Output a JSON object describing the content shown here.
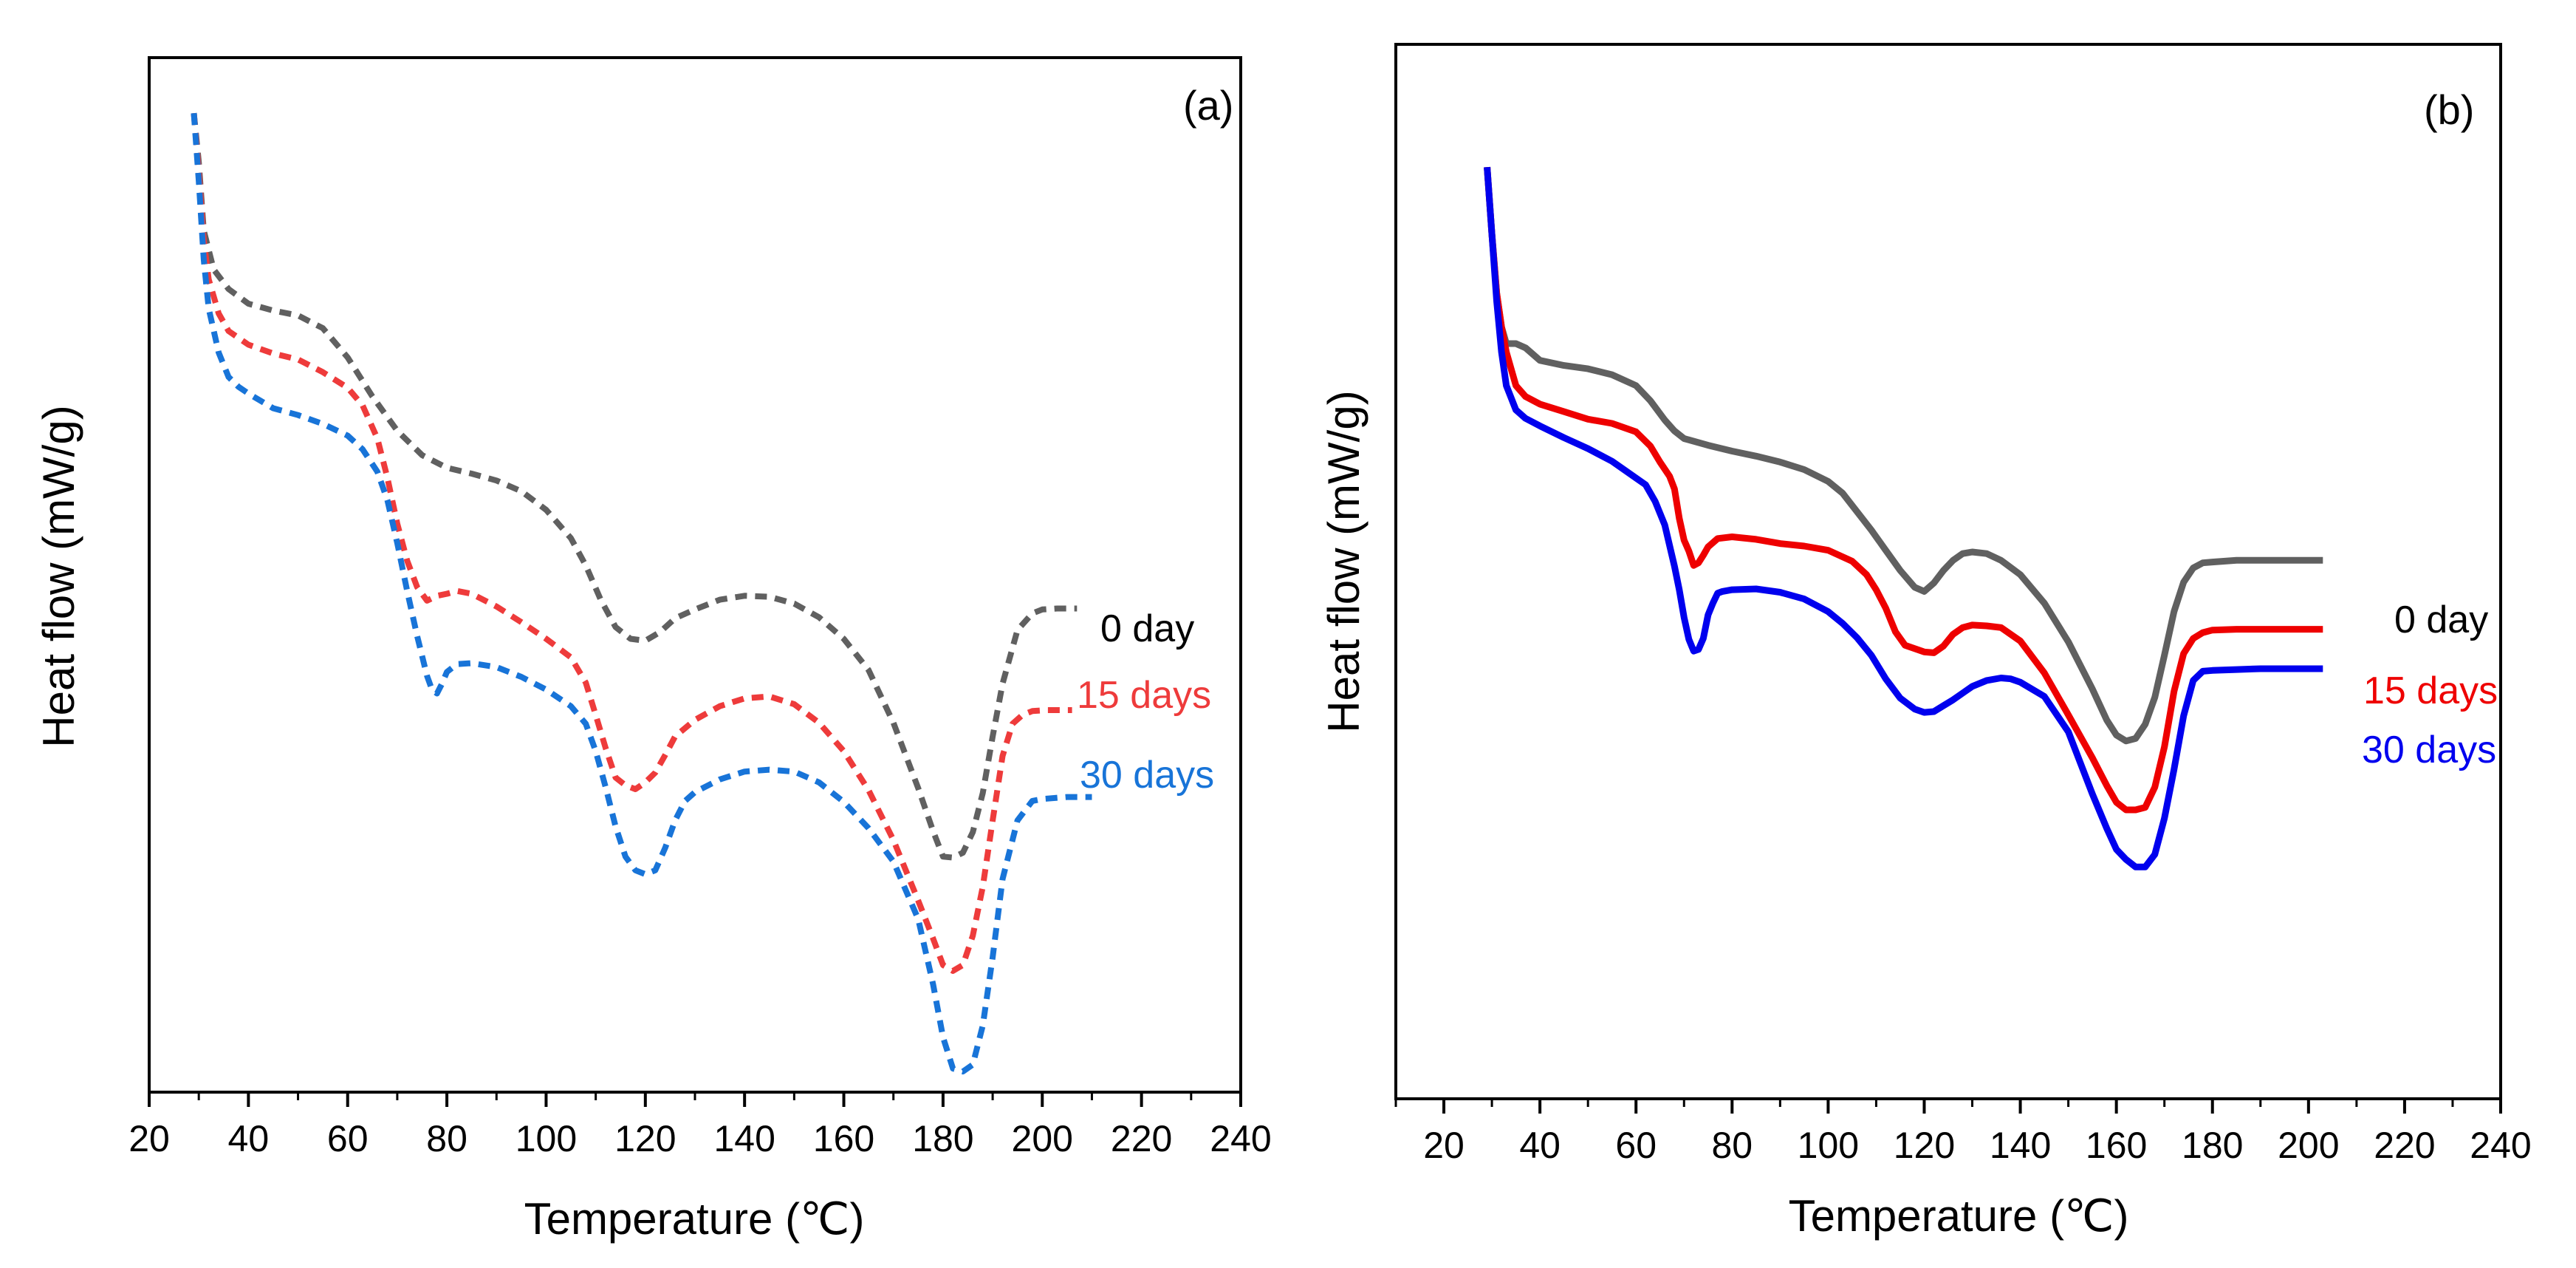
{
  "chart_data": [
    {
      "type": "line",
      "panel_label": "(a)",
      "xlabel": "Temperature (℃)",
      "ylabel": "Heat flow (mW/g)",
      "xlim": [
        20,
        240
      ],
      "ylim": [
        0,
        100
      ],
      "xticks": [
        "20",
        "40",
        "60",
        "80",
        "100",
        "120",
        "140",
        "160",
        "180",
        "200",
        "220",
        "240"
      ],
      "y_tick_labels": false,
      "line_style": "dashed",
      "series": [
        {
          "name": "0 day",
          "color": "#606060",
          "x": [
            29,
            30,
            31,
            33,
            36,
            40,
            45,
            50,
            55,
            60,
            65,
            70,
            75,
            80,
            85,
            90,
            95,
            100,
            105,
            108,
            111,
            114,
            117,
            120,
            123,
            126,
            130,
            135,
            140,
            145,
            150,
            155,
            160,
            165,
            170,
            175,
            178,
            180,
            182,
            184,
            186,
            188,
            190,
            192,
            195,
            198,
            200,
            203,
            207
          ],
          "y": [
            99,
            94,
            87,
            83,
            81,
            79.5,
            78.8,
            78.3,
            77,
            74,
            70,
            66.5,
            64,
            62.7,
            62.1,
            61.4,
            60.3,
            58.4,
            55.5,
            52.7,
            49.2,
            46.4,
            45.2,
            45.0,
            45.9,
            47.3,
            48.2,
            49.2,
            49.6,
            49.5,
            48.8,
            47.4,
            45.2,
            42.0,
            36.6,
            29.9,
            25.5,
            22.9,
            22.8,
            23.3,
            25.4,
            29.4,
            35.2,
            40.6,
            46.1,
            47.8,
            48.2,
            48.3,
            48.3
          ]
        },
        {
          "name": "15 days",
          "color": "#ee3b3b",
          "x": [
            29,
            30,
            31,
            32,
            34,
            36,
            40,
            45,
            50,
            55,
            60,
            63,
            66,
            68,
            70,
            72,
            74,
            76,
            78,
            80,
            82,
            85,
            90,
            95,
            100,
            105,
            108,
            110,
            112,
            114,
            116,
            118,
            120,
            122,
            124,
            126,
            130,
            135,
            140,
            145,
            150,
            155,
            160,
            165,
            170,
            175,
            178,
            180,
            182,
            184,
            186,
            188,
            190,
            192,
            194,
            196,
            198,
            201,
            206
          ],
          "y": [
            99,
            93,
            86,
            82,
            78.5,
            76.7,
            75.3,
            74.4,
            73.8,
            72.5,
            70.9,
            69.1,
            65.7,
            61.7,
            57.0,
            53.2,
            50.5,
            49.1,
            49.6,
            49.8,
            50.1,
            49.8,
            48.5,
            46.9,
            45.2,
            43.3,
            40.7,
            37.4,
            34.0,
            31.0,
            30.2,
            29.8,
            30.5,
            31.5,
            33.3,
            35.2,
            36.9,
            38.3,
            39.1,
            39.3,
            38.5,
            36.6,
            33.7,
            29.7,
            24.6,
            18.4,
            14.5,
            11.8,
            11.2,
            11.8,
            14.8,
            19.8,
            26.6,
            33.2,
            36.5,
            37.4,
            37.8,
            37.9,
            37.9
          ]
        },
        {
          "name": "30 days",
          "color": "#1874d8",
          "x": [
            29,
            30,
            31,
            32,
            34,
            36,
            38,
            40,
            45,
            50,
            55,
            60,
            63,
            66,
            68,
            70,
            72,
            74,
            76,
            77,
            78,
            79,
            80,
            82,
            85,
            90,
            95,
            100,
            105,
            108,
            110,
            112,
            114,
            116,
            118,
            120,
            122,
            124,
            126,
            128,
            130,
            135,
            140,
            145,
            150,
            155,
            160,
            165,
            170,
            175,
            178,
            180,
            182,
            184,
            186,
            188,
            190,
            192,
            195,
            198,
            200,
            205,
            210
          ],
          "y": [
            99,
            92,
            84,
            79,
            74.5,
            72.0,
            71.0,
            70.3,
            68.8,
            68.1,
            67.2,
            66.0,
            64.6,
            62.3,
            59.4,
            55.0,
            50.1,
            45.5,
            41.4,
            40.0,
            39.6,
            40.6,
            41.8,
            42.6,
            42.7,
            42.3,
            41.3,
            40.0,
            38.3,
            36.5,
            33.7,
            30.0,
            26.0,
            22.9,
            21.5,
            21.1,
            21.5,
            23.8,
            26.6,
            28.6,
            29.5,
            30.8,
            31.6,
            31.8,
            31.6,
            30.5,
            28.5,
            25.8,
            22.4,
            16.5,
            9.8,
            4.4,
            1.2,
            0.9,
            1.6,
            5.6,
            12.6,
            20.6,
            26.6,
            28.6,
            28.8,
            29.0,
            29.0
          ]
        }
      ]
    },
    {
      "type": "line",
      "panel_label": "(b)",
      "xlabel": "Temperature (℃)",
      "ylabel": "Heat flow (mW/g)",
      "xlim": [
        10,
        240
      ],
      "ylim": [
        0,
        100
      ],
      "xticks": [
        "20",
        "40",
        "60",
        "80",
        "100",
        "120",
        "140",
        "160",
        "180",
        "200",
        "220",
        "240"
      ],
      "y_tick_labels": false,
      "line_style": "solid",
      "series": [
        {
          "name": "0 day",
          "color": "#606060",
          "x": [
            29,
            30,
            31,
            32,
            33,
            35,
            37,
            40,
            45,
            50,
            55,
            60,
            63,
            66,
            68,
            70,
            75,
            80,
            85,
            90,
            95,
            100,
            103,
            106,
            109,
            112,
            115,
            118,
            120,
            122,
            124,
            126,
            128,
            130,
            133,
            136,
            140,
            145,
            150,
            155,
            158,
            160,
            162,
            164,
            166,
            168,
            170,
            172,
            174,
            176,
            178,
            180,
            185,
            190,
            195,
            200,
            203
          ],
          "y": [
            94,
            86,
            79,
            75,
            73,
            73,
            72.5,
            71,
            70.4,
            70.0,
            69.3,
            68.0,
            66.2,
            63.9,
            62.6,
            61.7,
            60.9,
            60.2,
            59.6,
            58.9,
            58.0,
            56.6,
            55.2,
            53.0,
            50.8,
            48.4,
            46.0,
            44.0,
            43.5,
            44.5,
            46.0,
            47.2,
            48.0,
            48.2,
            48.0,
            47.2,
            45.5,
            42.1,
            37.5,
            31.9,
            28.2,
            26.4,
            25.7,
            26.0,
            27.7,
            30.9,
            35.9,
            41.1,
            44.6,
            46.3,
            46.9,
            47.0,
            47.2,
            47.2,
            47.2,
            47.2,
            47.2
          ]
        },
        {
          "name": "15 days",
          "color": "#ee0000",
          "x": [
            29,
            30,
            31,
            32,
            33,
            35,
            37,
            40,
            45,
            50,
            55,
            60,
            63,
            65,
            67,
            68,
            69,
            70,
            71,
            72,
            73,
            74,
            75,
            77,
            80,
            85,
            90,
            95,
            100,
            105,
            108,
            110,
            112,
            114,
            116,
            118,
            120,
            122,
            124,
            126,
            128,
            130,
            133,
            136,
            140,
            145,
            150,
            155,
            158,
            160,
            162,
            164,
            166,
            168,
            170,
            172,
            174,
            176,
            178,
            180,
            185,
            190,
            195,
            200,
            203
          ],
          "y": [
            94,
            86,
            79,
            75,
            72,
            68,
            66.7,
            65.8,
            64.9,
            64.0,
            63.5,
            62.5,
            60.8,
            58.9,
            57.2,
            55.7,
            52.2,
            49.6,
            48.3,
            46.6,
            46.9,
            47.8,
            48.8,
            49.8,
            50.0,
            49.7,
            49.2,
            48.9,
            48.4,
            47.1,
            45.5,
            43.7,
            41.5,
            38.7,
            37.1,
            36.7,
            36.3,
            36.2,
            37.0,
            38.4,
            39.2,
            39.5,
            39.4,
            39.2,
            37.6,
            33.8,
            28.8,
            23.7,
            20.4,
            18.4,
            17.5,
            17.5,
            17.8,
            20.2,
            25.0,
            31.6,
            36.1,
            37.9,
            38.6,
            38.9,
            39.0,
            39.0,
            39.0,
            39.0,
            39.0
          ]
        },
        {
          "name": "30 days",
          "color": "#0000ee",
          "x": [
            29,
            30,
            31,
            32,
            33,
            35,
            37,
            40,
            45,
            50,
            55,
            60,
            62,
            64,
            66,
            68,
            69,
            70,
            71,
            72,
            73,
            74,
            75,
            76,
            77,
            78,
            80,
            85,
            90,
            95,
            100,
            103,
            106,
            109,
            112,
            115,
            118,
            120,
            122,
            124,
            126,
            128,
            130,
            133,
            136,
            138,
            140,
            145,
            150,
            155,
            158,
            160,
            162,
            164,
            166,
            168,
            170,
            172,
            174,
            176,
            178,
            180,
            185,
            190,
            195,
            200,
            203
          ],
          "y": [
            94,
            86,
            78,
            72,
            68,
            65.1,
            64.1,
            63.2,
            61.8,
            60.5,
            59.0,
            57.0,
            56.2,
            54.2,
            51.4,
            46.5,
            43.7,
            40.4,
            37.8,
            36.4,
            36.6,
            37.9,
            40.7,
            42.1,
            43.3,
            43.5,
            43.7,
            43.8,
            43.4,
            42.6,
            41.1,
            39.7,
            38.0,
            35.9,
            33.1,
            30.8,
            29.5,
            29.1,
            29.2,
            29.9,
            30.6,
            31.4,
            32.2,
            32.9,
            33.2,
            33.1,
            32.7,
            31.0,
            26.8,
            19.4,
            15.3,
            12.8,
            11.6,
            10.7,
            10.7,
            12.2,
            16.5,
            22.3,
            28.7,
            32.9,
            34.0,
            34.1,
            34.2,
            34.3,
            34.3,
            34.3,
            34.3
          ]
        }
      ]
    }
  ]
}
